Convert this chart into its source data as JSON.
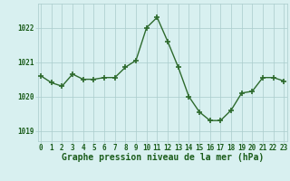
{
  "hours": [
    0,
    1,
    2,
    3,
    4,
    5,
    6,
    7,
    8,
    9,
    10,
    11,
    12,
    13,
    14,
    15,
    16,
    17,
    18,
    19,
    20,
    21,
    22,
    23
  ],
  "pressure": [
    1020.6,
    1020.4,
    1020.3,
    1020.65,
    1020.5,
    1020.5,
    1020.55,
    1020.55,
    1020.85,
    1021.05,
    1022.0,
    1022.3,
    1021.6,
    1020.85,
    1020.0,
    1019.55,
    1019.3,
    1019.3,
    1019.6,
    1020.1,
    1020.15,
    1020.55,
    1020.55,
    1020.45
  ],
  "line_color": "#2d6a2d",
  "marker": "+",
  "marker_size": 4,
  "marker_linewidth": 1.2,
  "line_width": 1.0,
  "bg_color": "#d8f0f0",
  "grid_color": "#aacccc",
  "xlabel": "Graphe pression niveau de la mer (hPa)",
  "xlabel_color": "#1a5c1a",
  "xlabel_fontsize": 7,
  "tick_color": "#1a5c1a",
  "tick_fontsize": 5.5,
  "ytick_labels": [
    "1019",
    "1020",
    "1021",
    "1022"
  ],
  "ytick_values": [
    1019,
    1020,
    1021,
    1022
  ],
  "ylim": [
    1018.7,
    1022.7
  ],
  "xlim": [
    -0.3,
    23.3
  ],
  "xtick_values": [
    0,
    1,
    2,
    3,
    4,
    5,
    6,
    7,
    8,
    9,
    10,
    11,
    12,
    13,
    14,
    15,
    16,
    17,
    18,
    19,
    20,
    21,
    22,
    23
  ],
  "xtick_labels": [
    "0",
    "1",
    "2",
    "3",
    "4",
    "5",
    "6",
    "7",
    "8",
    "9",
    "10",
    "11",
    "12",
    "13",
    "14",
    "15",
    "16",
    "17",
    "18",
    "19",
    "20",
    "21",
    "22",
    "23"
  ]
}
